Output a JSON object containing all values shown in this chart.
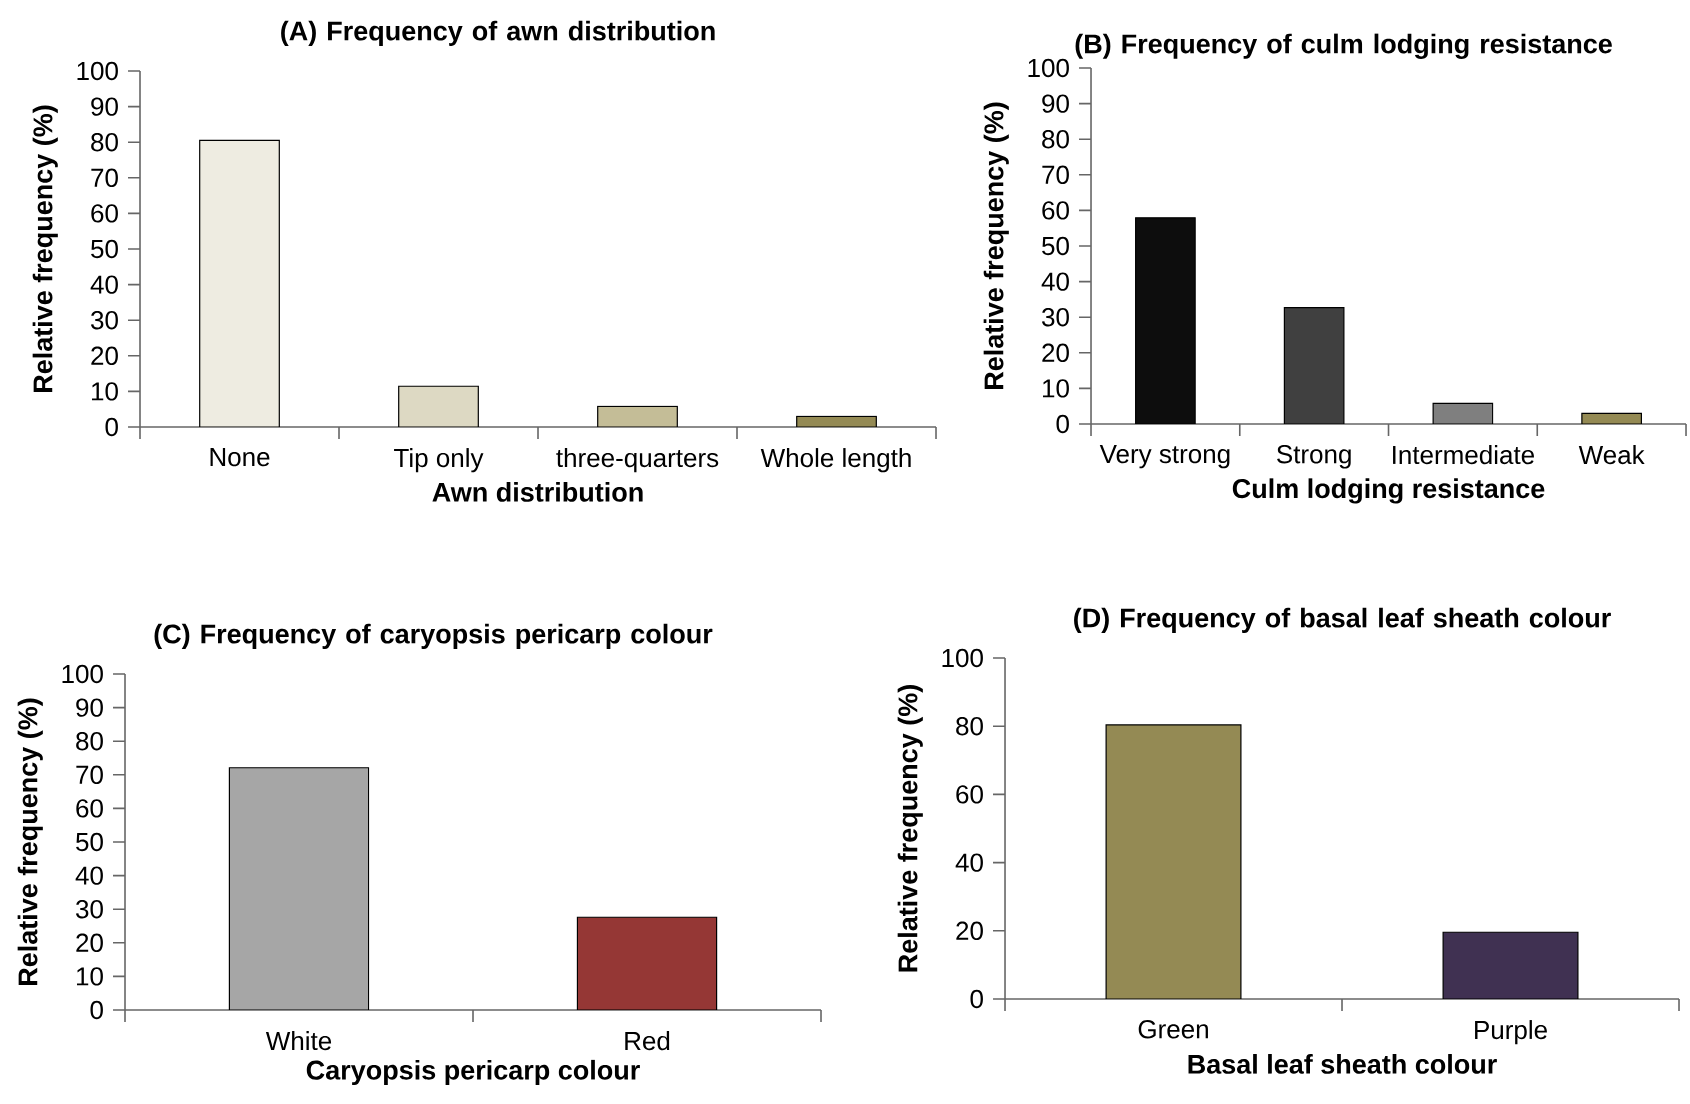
{
  "chart_data": [
    {
      "type": "bar",
      "title": "(A) Frequency of awn distribution",
      "xlabel": "Awn distribution",
      "ylabel": "Relative frequency (%)",
      "categories": [
        "None",
        "Tip only",
        "three-quarters",
        "Whole length"
      ],
      "values": [
        80.5,
        11.5,
        5.8,
        3
      ],
      "colors": [
        "#eeece1",
        "#ddd9c3",
        "#c4bd97",
        "#948a54"
      ],
      "ylim": [
        0,
        100
      ],
      "yticks": [
        0,
        10,
        20,
        30,
        40,
        50,
        60,
        70,
        80,
        90,
        100
      ]
    },
    {
      "type": "bar",
      "title": "(B) Frequency of culm lodging resistance",
      "xlabel": "Culm lodging resistance",
      "ylabel": "Relative frequency (%)",
      "categories": [
        "Very strong",
        "Strong",
        "Intermediate",
        "Weak"
      ],
      "values": [
        57.9,
        32.7,
        5.8,
        3
      ],
      "colors": [
        "#0d0d0d",
        "#404040",
        "#7f7f7f",
        "#948a54"
      ],
      "ylim": [
        0,
        100
      ],
      "yticks": [
        0,
        10,
        20,
        30,
        40,
        50,
        60,
        70,
        80,
        90,
        100
      ]
    },
    {
      "type": "bar",
      "title": "(C) Frequency of caryopsis pericarp colour",
      "xlabel": "Caryopsis pericarp colour",
      "ylabel": "Relative frequency (%)",
      "categories": [
        "White",
        "Red"
      ],
      "values": [
        72.1,
        27.6
      ],
      "colors": [
        "#a6a6a6",
        "#953735"
      ],
      "ylim": [
        0,
        100
      ],
      "yticks": [
        0,
        10,
        20,
        30,
        40,
        50,
        60,
        70,
        80,
        90,
        100
      ]
    },
    {
      "type": "bar",
      "title": "(D) Frequency of basal leaf sheath colour",
      "xlabel": "Basal leaf sheath colour",
      "ylabel": "Relative frequency (%)",
      "categories": [
        "Green",
        "Purple"
      ],
      "values": [
        80.4,
        19.6
      ],
      "colors": [
        "#948a54",
        "#403152"
      ],
      "ylim": [
        0,
        100
      ],
      "yticks": [
        0,
        20,
        40,
        60,
        80,
        100
      ]
    }
  ]
}
